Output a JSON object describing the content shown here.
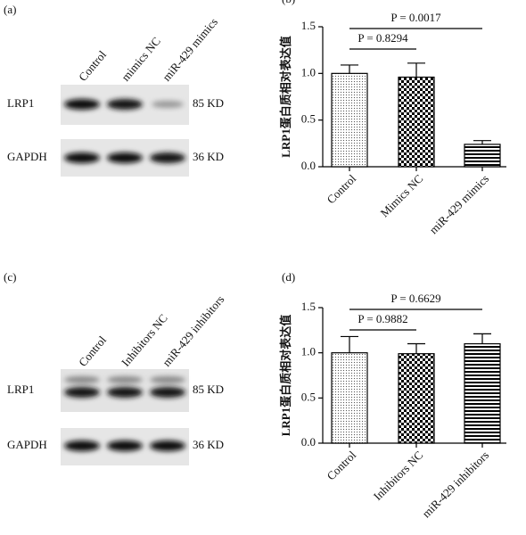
{
  "blots": [
    {
      "label": "(a)",
      "lanes": [
        "Control",
        "mimics NC",
        "miR-429 mimics"
      ],
      "rows": [
        {
          "name": "LRP1",
          "size": "85 KD"
        },
        {
          "name": "GAPDH",
          "size": "36 KD"
        }
      ]
    },
    {
      "label": "(c)",
      "lanes": [
        "Control",
        "Inhibitors NC",
        "miR-429 inhibitors"
      ],
      "rows": [
        {
          "name": "LRP1",
          "size": "85 KD"
        },
        {
          "name": "GAPDH",
          "size": "36 KD"
        }
      ]
    }
  ],
  "chart_data": [
    {
      "type": "bar",
      "label": "(b)",
      "ylabel": "LRP1蛋白质相对表达值",
      "categories": [
        "Control",
        "Mimics NC",
        "miR-429 mimics"
      ],
      "values": [
        1.0,
        0.96,
        0.24
      ],
      "errors": [
        0.09,
        0.15,
        0.04
      ],
      "patterns": [
        "dots",
        "checker",
        "hlines"
      ],
      "ylim": [
        0,
        1.5
      ],
      "yticks": [
        {
          "value": 0,
          "label": "0.0"
        },
        0.5,
        {
          "value": 1,
          "label": "1.0"
        },
        1.5
      ],
      "annotations": [
        "P = 0.8294",
        "P = 0.0017"
      ]
    },
    {
      "type": "bar",
      "label": "(d)",
      "ylabel": "LRP1蛋白质相对表达值",
      "categories": [
        "Control",
        "Inhibitors NC",
        "miR-429 inhibitors"
      ],
      "values": [
        1.0,
        0.99,
        1.1
      ],
      "errors": [
        0.18,
        0.11,
        0.11
      ],
      "patterns": [
        "dots",
        "checker",
        "hlines"
      ],
      "ylim": [
        0,
        1.5
      ],
      "yticks": [
        {
          "value": 0,
          "label": "0.0"
        },
        0.5,
        {
          "value": 1,
          "label": "1.0"
        },
        1.5
      ],
      "annotations": [
        "P = 0.9882",
        "P = 0.6629"
      ]
    }
  ]
}
